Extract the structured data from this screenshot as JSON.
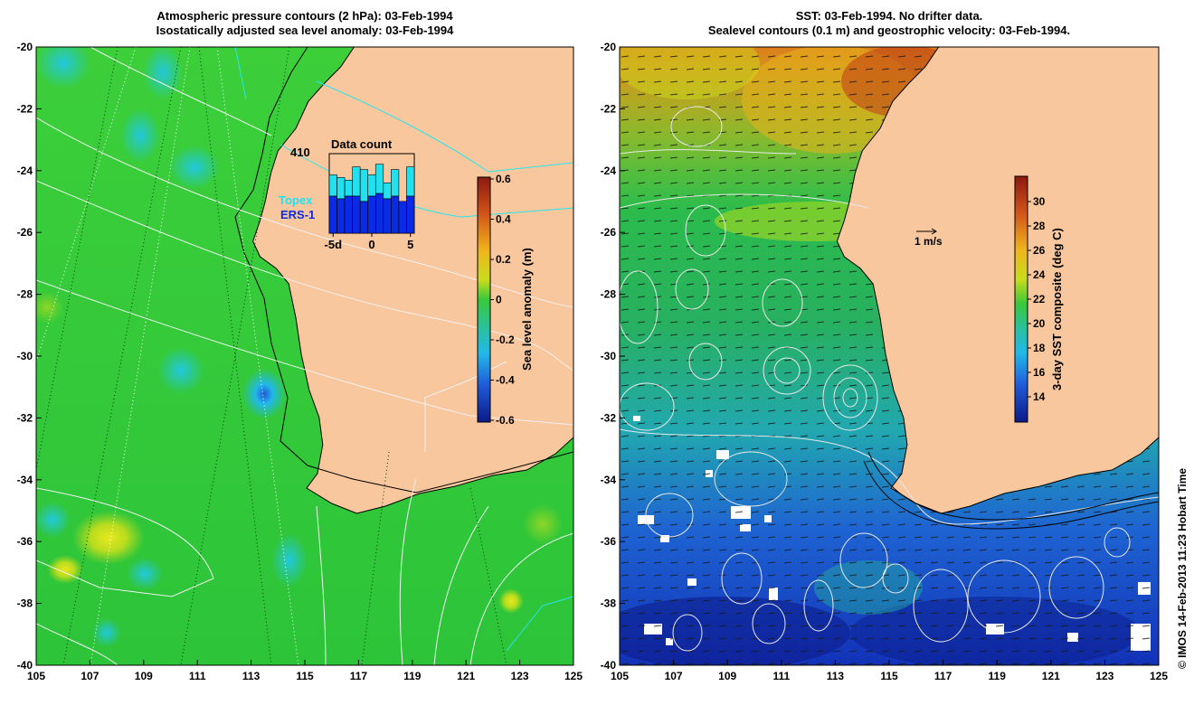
{
  "left_panel": {
    "title_line1": "Atmospheric pressure contours (2 hPa): 03-Feb-1994",
    "title_line2": "Isostatically adjusted sea level anomaly: 03-Feb-1994",
    "lat_labels": [
      "-20",
      "-22",
      "-24",
      "-26",
      "-28",
      "-30",
      "-32",
      "-34",
      "-36",
      "-38",
      "-40"
    ],
    "lon_labels": [
      "105",
      "107",
      "109",
      "111",
      "113",
      "115",
      "117",
      "119",
      "121",
      "123",
      "125"
    ],
    "contour_label": "410",
    "inset": {
      "title": "Data count",
      "legend_topex": "Topex",
      "legend_ers1": "ERS-1",
      "xticks": [
        "-5d",
        "0",
        "5"
      ],
      "topex_color": "#22e0ee",
      "ers1_color": "#0a2ae6",
      "chart_data": {
        "type": "bar",
        "x": [
          -5,
          -4,
          -3,
          -2,
          -1,
          0,
          1,
          2,
          3,
          4,
          5
        ],
        "series": [
          {
            "name": "ERS-1",
            "values": [
              14,
              13,
              14,
              14,
              12,
              14,
              15,
              13,
              14,
              12,
              14
            ]
          },
          {
            "name": "Topex",
            "values": [
              8,
              8,
              6,
              11,
              12,
              8,
              11,
              6,
              10,
              0,
              11
            ]
          }
        ],
        "ylim": [
          0,
          30
        ]
      }
    },
    "colorbar": {
      "label": "Sea level anomaly (m)",
      "ticks": [
        "0.6",
        "0.4",
        "0.2",
        "0",
        "-0.2",
        "-0.4",
        "-0.6"
      ],
      "min": -0.6,
      "max": 0.6
    }
  },
  "right_panel": {
    "title_line1": "SST: 03-Feb-1994. No drifter data.",
    "title_line2": "Sealevel contours (0.1 m) and geostrophic velocity: 03-Feb-1994.",
    "lat_labels": [
      "-20",
      "-22",
      "-24",
      "-26",
      "-28",
      "-30",
      "-32",
      "-34",
      "-36",
      "-38",
      "-40"
    ],
    "lon_labels": [
      "105",
      "107",
      "109",
      "111",
      "113",
      "115",
      "117",
      "119",
      "121",
      "123",
      "125"
    ],
    "velocity_scale_label": "1 m/s",
    "colorbar": {
      "label": "3-day SST composite (deg C)",
      "ticks": [
        "30",
        "28",
        "26",
        "24",
        "22",
        "20",
        "18",
        "16",
        "14"
      ],
      "min": 12.6,
      "max": 31.4
    }
  },
  "credit": "© IMOS 14-Feb-2013 11:23 Hobart Time",
  "colors": {
    "land": "#f9c79d",
    "ocean_green": "#2fc83a",
    "coast": "#000000"
  }
}
